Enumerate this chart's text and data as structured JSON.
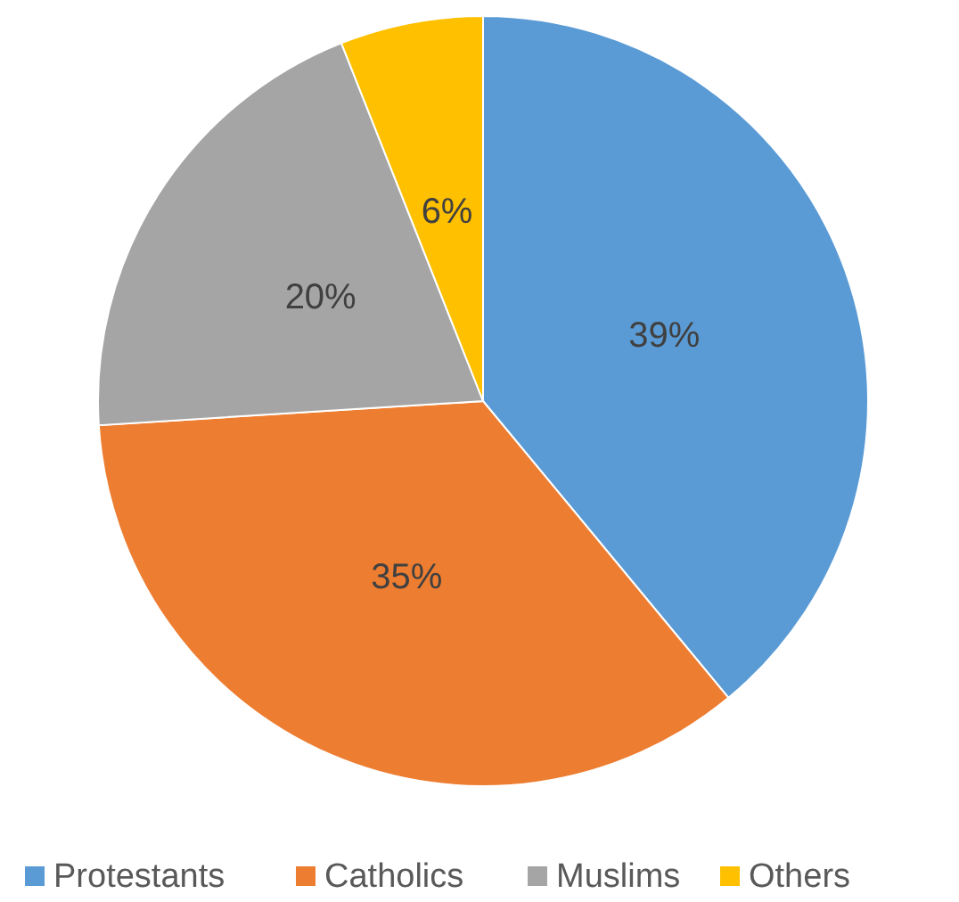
{
  "chart_data": {
    "type": "pie",
    "categories": [
      "Protestants",
      "Catholics",
      "Muslims",
      "Others"
    ],
    "values": [
      39,
      35,
      20,
      6
    ],
    "colors": [
      "#5b9bd5",
      "#ed7d31",
      "#a5a5a5",
      "#ffc000"
    ],
    "value_labels": [
      "39%",
      "35%",
      "20%",
      "6%"
    ],
    "legend": "bottom"
  }
}
